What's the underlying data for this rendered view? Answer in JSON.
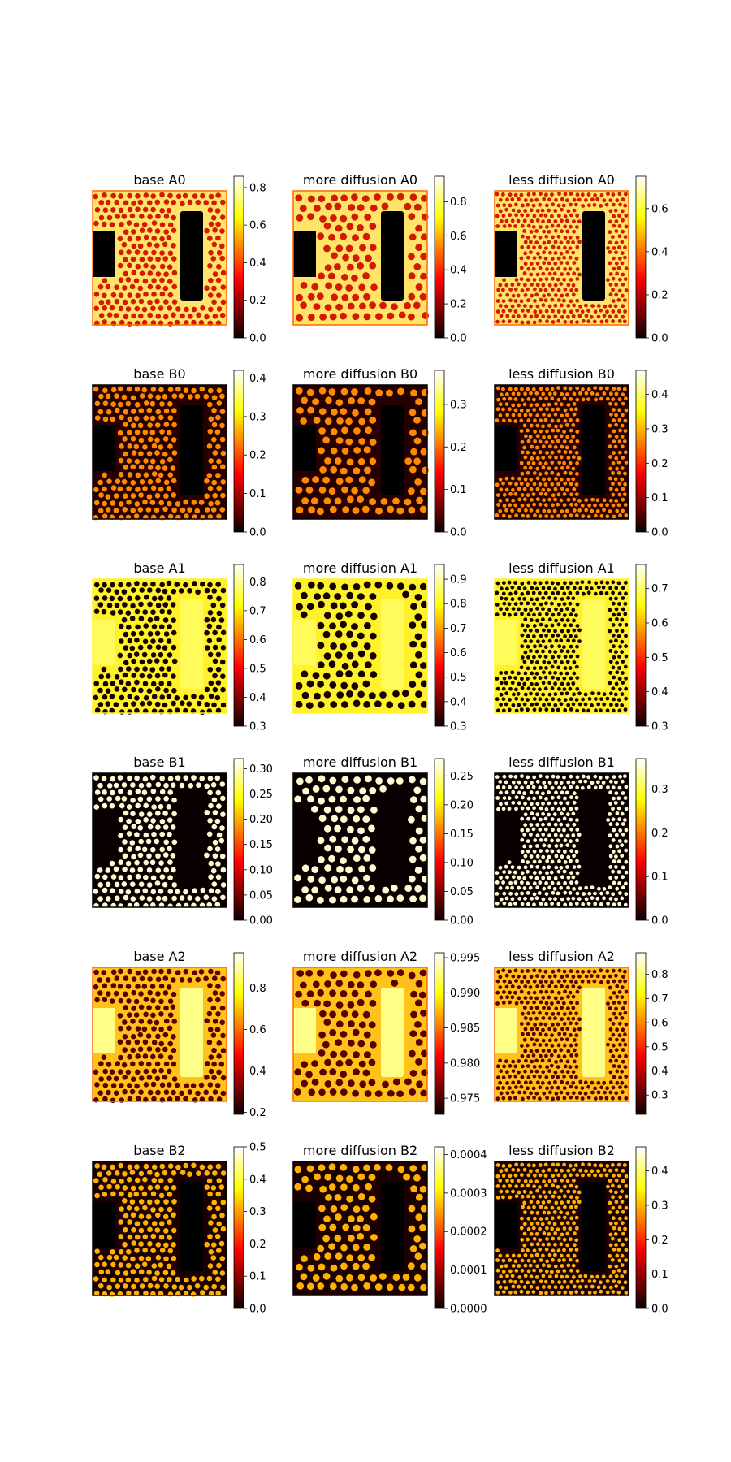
{
  "figure": {
    "background": "#ffffff",
    "colormap": "hot"
  },
  "chart_data": [
    {
      "type": "heatmap",
      "title": "base A0",
      "scale": "mid",
      "colorbar": {
        "ticks": [
          "0.0",
          "0.2",
          "0.4",
          "0.6",
          "0.8"
        ],
        "range": [
          0.0,
          0.86
        ]
      }
    },
    {
      "type": "heatmap",
      "title": "more diffusion A0",
      "scale": "coarse",
      "colorbar": {
        "ticks": [
          "0.0",
          "0.2",
          "0.4",
          "0.6",
          "0.8"
        ],
        "range": [
          0.0,
          0.95
        ]
      }
    },
    {
      "type": "heatmap",
      "title": "less diffusion A0",
      "scale": "fine",
      "colorbar": {
        "ticks": [
          "0.0",
          "0.2",
          "0.4",
          "0.6"
        ],
        "range": [
          0.0,
          0.75
        ]
      }
    },
    {
      "type": "heatmap",
      "title": "base B0",
      "scale": "mid",
      "colorbar": {
        "ticks": [
          "0.0",
          "0.1",
          "0.2",
          "0.3",
          "0.4"
        ],
        "range": [
          0.0,
          0.42
        ]
      }
    },
    {
      "type": "heatmap",
      "title": "more diffusion B0",
      "scale": "coarse",
      "colorbar": {
        "ticks": [
          "0.0",
          "0.1",
          "0.2",
          "0.3"
        ],
        "range": [
          0.0,
          0.38
        ]
      }
    },
    {
      "type": "heatmap",
      "title": "less diffusion B0",
      "scale": "fine",
      "colorbar": {
        "ticks": [
          "0.0",
          "0.1",
          "0.2",
          "0.3",
          "0.4"
        ],
        "range": [
          0.0,
          0.47
        ]
      }
    },
    {
      "type": "heatmap",
      "title": "base A1",
      "scale": "mid",
      "colorbar": {
        "ticks": [
          "0.3",
          "0.4",
          "0.5",
          "0.6",
          "0.7",
          "0.8"
        ],
        "range": [
          0.3,
          0.86
        ]
      }
    },
    {
      "type": "heatmap",
      "title": "more diffusion A1",
      "scale": "coarse",
      "colorbar": {
        "ticks": [
          "0.3",
          "0.4",
          "0.5",
          "0.6",
          "0.7",
          "0.8",
          "0.9"
        ],
        "range": [
          0.3,
          0.96
        ]
      }
    },
    {
      "type": "heatmap",
      "title": "less diffusion A1",
      "scale": "fine",
      "colorbar": {
        "ticks": [
          "0.3",
          "0.4",
          "0.5",
          "0.6",
          "0.7"
        ],
        "range": [
          0.3,
          0.77
        ]
      }
    },
    {
      "type": "heatmap",
      "title": "base B1",
      "scale": "mid",
      "colorbar": {
        "ticks": [
          "0.00",
          "0.05",
          "0.10",
          "0.15",
          "0.20",
          "0.25",
          "0.30"
        ],
        "range": [
          0.0,
          0.32
        ]
      }
    },
    {
      "type": "heatmap",
      "title": "more diffusion B1",
      "scale": "coarse",
      "colorbar": {
        "ticks": [
          "0.00",
          "0.05",
          "0.10",
          "0.15",
          "0.20",
          "0.25"
        ],
        "range": [
          0.0,
          0.28
        ]
      }
    },
    {
      "type": "heatmap",
      "title": "less diffusion B1",
      "scale": "fine",
      "colorbar": {
        "ticks": [
          "0.0",
          "0.1",
          "0.2",
          "0.3"
        ],
        "range": [
          0.0,
          0.37
        ]
      }
    },
    {
      "type": "heatmap",
      "title": "base A2",
      "scale": "mid",
      "colorbar": {
        "ticks": [
          "0.2",
          "0.4",
          "0.6",
          "0.8"
        ],
        "range": [
          0.19,
          0.97
        ]
      }
    },
    {
      "type": "heatmap",
      "title": "more diffusion A2",
      "scale": "coarse",
      "colorbar": {
        "ticks": [
          "0.975",
          "0.980",
          "0.985",
          "0.990",
          "0.995"
        ],
        "range": [
          0.9727,
          0.9957
        ]
      }
    },
    {
      "type": "heatmap",
      "title": "less diffusion A2",
      "scale": "fine",
      "colorbar": {
        "ticks": [
          "0.3",
          "0.4",
          "0.5",
          "0.6",
          "0.7",
          "0.8"
        ],
        "range": [
          0.22,
          0.89
        ]
      }
    },
    {
      "type": "heatmap",
      "title": "base B2",
      "scale": "mid",
      "colorbar": {
        "ticks": [
          "0.0",
          "0.1",
          "0.2",
          "0.3",
          "0.4",
          "0.5"
        ],
        "range": [
          0.0,
          0.5
        ]
      }
    },
    {
      "type": "heatmap",
      "title": "more diffusion B2",
      "scale": "coarse",
      "colorbar": {
        "ticks": [
          "0.0000",
          "0.0001",
          "0.0002",
          "0.0003",
          "0.0004"
        ],
        "range": [
          0.0,
          0.00042
        ]
      }
    },
    {
      "type": "heatmap",
      "title": "less diffusion B2",
      "scale": "fine",
      "colorbar": {
        "ticks": [
          "0.0",
          "0.1",
          "0.2",
          "0.3",
          "0.4"
        ],
        "range": [
          0.0,
          0.47
        ]
      }
    }
  ]
}
